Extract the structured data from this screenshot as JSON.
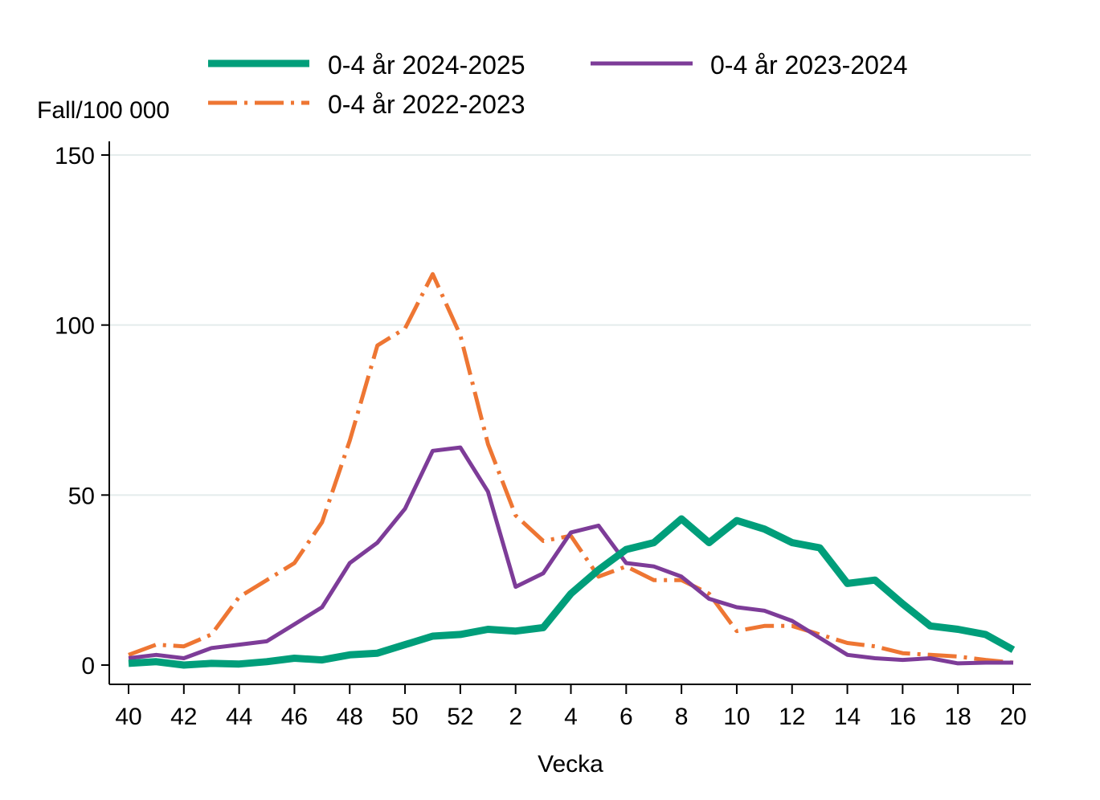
{
  "chart_data": {
    "type": "line",
    "ylabel": "Fall/100 000",
    "xlabel": "Vecka",
    "ylim": [
      0,
      150
    ],
    "y_ticks": [
      0,
      50,
      100,
      150
    ],
    "grid": "horizontal",
    "legend_position": "top",
    "x_weeks": [
      40,
      41,
      42,
      43,
      44,
      45,
      46,
      47,
      48,
      49,
      50,
      51,
      52,
      1,
      2,
      3,
      4,
      5,
      6,
      7,
      8,
      9,
      10,
      11,
      12,
      13,
      14,
      15,
      16,
      17,
      18,
      19,
      20
    ],
    "x_tick_labels": [
      "40",
      "42",
      "44",
      "46",
      "48",
      "50",
      "52",
      "2",
      "4",
      "6",
      "8",
      "10",
      "12",
      "14",
      "16",
      "18",
      "20"
    ],
    "series": [
      {
        "name": "0-4 år 2024-2025",
        "color": "#009E7A",
        "style": "solid-thick",
        "values": [
          0.5,
          1,
          0,
          0.5,
          0.3,
          1,
          2,
          1.5,
          3,
          3.5,
          6,
          8.5,
          9,
          10.5,
          10,
          11,
          21,
          28,
          34,
          36,
          43,
          36,
          42.5,
          40,
          36,
          34.5,
          24,
          25,
          18,
          11.5,
          10.5,
          9,
          4.5
        ]
      },
      {
        "name": "0-4 år 2023-2024",
        "color": "#7D3C98",
        "style": "solid",
        "values": [
          2,
          3,
          2,
          5,
          6,
          7,
          12,
          17,
          30,
          36,
          46,
          63,
          64,
          51,
          23,
          27,
          39,
          41,
          30,
          29,
          26,
          19.5,
          17,
          16,
          13,
          8,
          3,
          2,
          1.5,
          2,
          0.5,
          0.7,
          0.7
        ]
      },
      {
        "name": "0-4 år 2022-2023",
        "color": "#EE7633",
        "style": "dash-dot",
        "values": [
          3,
          6,
          5.5,
          9,
          20,
          25,
          30,
          42,
          66,
          94,
          99,
          115,
          97,
          65,
          44,
          36.5,
          38,
          26,
          29,
          25,
          25,
          21,
          10,
          11.5,
          11.5,
          9,
          6.5,
          5.5,
          3.5,
          3,
          2.5,
          1.5,
          0.7
        ]
      }
    ]
  }
}
